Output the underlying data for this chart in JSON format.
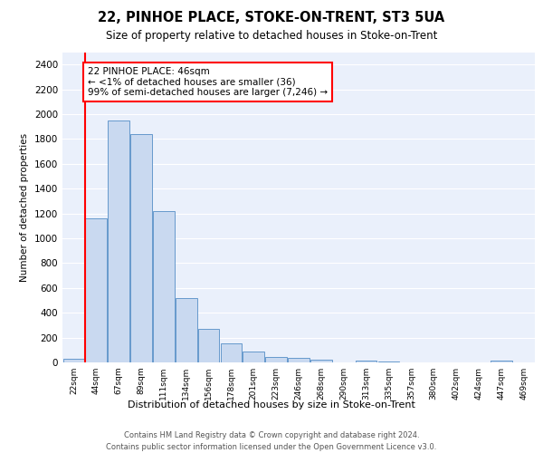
{
  "title1": "22, PINHOE PLACE, STOKE-ON-TRENT, ST3 5UA",
  "title2": "Size of property relative to detached houses in Stoke-on-Trent",
  "xlabel": "Distribution of detached houses by size in Stoke-on-Trent",
  "ylabel": "Number of detached properties",
  "bin_labels": [
    "22sqm",
    "44sqm",
    "67sqm",
    "89sqm",
    "111sqm",
    "134sqm",
    "156sqm",
    "178sqm",
    "201sqm",
    "223sqm",
    "246sqm",
    "268sqm",
    "290sqm",
    "313sqm",
    "335sqm",
    "357sqm",
    "380sqm",
    "402sqm",
    "424sqm",
    "447sqm",
    "469sqm"
  ],
  "bar_heights": [
    30,
    1160,
    1950,
    1840,
    1220,
    520,
    270,
    155,
    85,
    45,
    40,
    20,
    0,
    15,
    10,
    0,
    0,
    0,
    0,
    15,
    0
  ],
  "bar_color": "#c9d9f0",
  "bar_edge_color": "#6699cc",
  "vline_x": 0.5,
  "vline_color": "red",
  "annotation_text": "22 PINHOE PLACE: 46sqm\n← <1% of detached houses are smaller (36)\n99% of semi-detached houses are larger (7,246) →",
  "annotation_box_color": "white",
  "annotation_box_edge_color": "red",
  "ylim": [
    0,
    2500
  ],
  "yticks": [
    0,
    200,
    400,
    600,
    800,
    1000,
    1200,
    1400,
    1600,
    1800,
    2000,
    2200,
    2400
  ],
  "footer1": "Contains HM Land Registry data © Crown copyright and database right 2024.",
  "footer2": "Contains public sector information licensed under the Open Government Licence v3.0.",
  "bg_color": "#eaf0fb",
  "grid_color": "white"
}
